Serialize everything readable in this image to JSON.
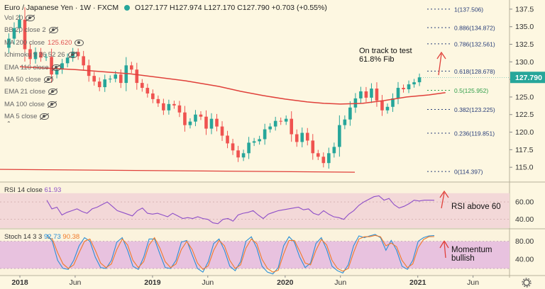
{
  "header": {
    "symbol": "Euro / Japanese Yen",
    "interval": "1W",
    "source": "FXCM",
    "ohlc": "O127.177  H127.974  L127.170  C127.790  +0.703 (+0.55%)"
  },
  "legend_items": [
    {
      "label": "Vol 20",
      "hidden": true
    },
    {
      "label": "BB 20 close 2",
      "hidden": true
    },
    {
      "label": "MA 200 close",
      "value": "125.620",
      "value_color": "#e05050",
      "hidden": false
    },
    {
      "label": "Ichimoku 9 26 52 26",
      "hidden": true
    },
    {
      "label": "EMA 110 close",
      "hidden": true
    },
    {
      "label": "MA 50 close",
      "hidden": true
    },
    {
      "label": "EMA 21 close",
      "hidden": true
    },
    {
      "label": "MA 100 close",
      "hidden": true
    },
    {
      "label": "MA 5 close",
      "hidden": true
    }
  ],
  "colors": {
    "up": "#26a69a",
    "down": "#ef5350",
    "ma200": "#e0403a",
    "fib_label": "#2a3f7a",
    "fib_0_5": "#2e9e4a",
    "rsi": "#8e4fc8",
    "rsi_band": "#f3d8d8",
    "stoch_k": "#2a8fd6",
    "stoch_d": "#f07a2a",
    "stoch_band": "#e8c2df",
    "annotation": "#111111",
    "arrow": "#e0403a",
    "price_badge": "#26a69a"
  },
  "annotations": {
    "price_note": "On track to test\n61.8% Fib",
    "rsi_note": "RSI above 60",
    "stoch_note": "Momentum\nbullish"
  },
  "current_price": "127.790",
  "chart_data": [
    {
      "type": "candlestick",
      "title": "Euro / Japanese Yen · 1W · FXCM",
      "y_ticks": [
        115.0,
        117.5,
        120.0,
        122.5,
        125.0,
        127.5,
        130.0,
        132.5,
        135.0,
        137.5
      ],
      "ylim": [
        113.0,
        138.8
      ],
      "x_ticks": [
        "2018",
        "Jun",
        "2019",
        "Jun",
        "2020",
        "Jun",
        "2021",
        "Jun"
      ],
      "x_ticks_month": [
        0,
        5,
        12,
        17,
        24,
        29,
        36,
        41
      ],
      "xlim_month": [
        -1.8,
        44.3
      ],
      "closes": [
        133.3,
        134.8,
        136.0,
        131.8,
        130.4,
        131.4,
        130.6,
        130.7,
        128.2,
        128.9,
        129.8,
        130.6,
        131.4,
        130.8,
        129.5,
        128.0,
        127.2,
        126.4,
        127.5,
        127.6,
        128.2,
        127.0,
        129.5,
        128.9,
        127.0,
        126.3,
        125.5,
        124.7,
        124.1,
        123.1,
        124.0,
        123.8,
        122.8,
        121.0,
        121.5,
        122.5,
        122.2,
        120.5,
        121.9,
        120.8,
        119.5,
        118.4,
        117.4,
        116.4,
        117.0,
        118.5,
        118.7,
        119.0,
        120.4,
        120.8,
        121.6,
        121.5,
        121.9,
        119.7,
        118.6,
        119.9,
        118.8,
        117.0,
        116.5,
        115.6,
        117.0,
        117.9,
        121.0,
        121.8,
        123.5,
        124.8,
        125.8,
        124.9,
        126.2,
        124.5,
        123.1,
        123.6,
        124.8,
        126.3,
        126.1,
        126.8,
        127.1,
        127.79
      ],
      "series": [
        {
          "name": "MA 200 close",
          "values": [
            129.3,
            128.9,
            128.3,
            127.3,
            126.5,
            125.8,
            125.2,
            124.7,
            124.3,
            124.1,
            124.0,
            124.1,
            124.5,
            125.0,
            125.3,
            125.62
          ]
        }
      ],
      "ma_month": [
        0,
        5,
        10,
        15,
        18,
        20,
        22,
        24,
        26,
        27.5,
        29,
        31,
        33,
        35,
        37,
        38.5
      ],
      "fib_levels": [
        {
          "label": "1(137.506)",
          "value": 137.506
        },
        {
          "label": "0.886(134.872)",
          "value": 134.872
        },
        {
          "label": "0.786(132.561)",
          "value": 132.561
        },
        {
          "label": "0.618(128.678)",
          "value": 128.678
        },
        {
          "label": "0.5(125.952)",
          "value": 125.952
        },
        {
          "label": "0.382(123.225)",
          "value": 123.225
        },
        {
          "label": "0.236(119.851)",
          "value": 119.851
        },
        {
          "label": "0(114.397)",
          "value": 114.397
        }
      ],
      "support_line": 114.3
    },
    {
      "type": "line",
      "title": "RSI 14 close",
      "value_label": "61.93",
      "y_ticks": [
        40.0,
        60.0
      ],
      "ylim": [
        30,
        82
      ],
      "band": [
        30,
        70
      ],
      "values": [
        62,
        52,
        54,
        45,
        48,
        50,
        52,
        49,
        47,
        52,
        54,
        57,
        60,
        55,
        50,
        48,
        46,
        44,
        50,
        53,
        47,
        46,
        47,
        45,
        43,
        47,
        44,
        41,
        42,
        41,
        43,
        41,
        40,
        36,
        35,
        40,
        41,
        38,
        45,
        47,
        48,
        50,
        45,
        41,
        46,
        48,
        50,
        51,
        52,
        53,
        54,
        51,
        52,
        47,
        45,
        50,
        46,
        43,
        42,
        40,
        46,
        50,
        56,
        60,
        63,
        66,
        67,
        62,
        64,
        57,
        53,
        55,
        58,
        62,
        61,
        62,
        62,
        61.93
      ]
    },
    {
      "type": "line",
      "title": "Stoch 14 3 3",
      "value_labels": [
        "92.73",
        "90.38"
      ],
      "y_ticks": [
        40.0,
        80.0
      ],
      "ylim": [
        6,
        106
      ],
      "band": [
        20,
        80
      ],
      "series": [
        {
          "name": "%K",
          "values": [
            95,
            80,
            38,
            20,
            18,
            38,
            70,
            88,
            80,
            45,
            22,
            20,
            38,
            78,
            88,
            60,
            25,
            18,
            45,
            85,
            85,
            52,
            22,
            20,
            38,
            78,
            82,
            50,
            20,
            12,
            35,
            75,
            85,
            60,
            25,
            15,
            35,
            80,
            90,
            65,
            25,
            12,
            8,
            22,
            70,
            90,
            78,
            45,
            22,
            32,
            75,
            88,
            62,
            25,
            15,
            10,
            28,
            70,
            92,
            88,
            92,
            95,
            88,
            60,
            82,
            60,
            25,
            18,
            38,
            80,
            88,
            92,
            92.73
          ]
        },
        {
          "name": "%D",
          "values": [
            88,
            85,
            55,
            30,
            20,
            28,
            55,
            80,
            85,
            60,
            32,
            22,
            30,
            62,
            85,
            72,
            38,
            22,
            35,
            72,
            88,
            65,
            35,
            22,
            30,
            62,
            80,
            62,
            32,
            18,
            26,
            60,
            82,
            70,
            38,
            20,
            28,
            65,
            85,
            75,
            40,
            20,
            12,
            16,
            52,
            82,
            82,
            58,
            32,
            28,
            60,
            84,
            72,
            38,
            20,
            14,
            20,
            55,
            85,
            90,
            90,
            93,
            90,
            70,
            76,
            68,
            38,
            22,
            30,
            66,
            84,
            90,
            90.38
          ]
        }
      ]
    }
  ],
  "ui": {
    "collapse_glyph": "⌃"
  }
}
